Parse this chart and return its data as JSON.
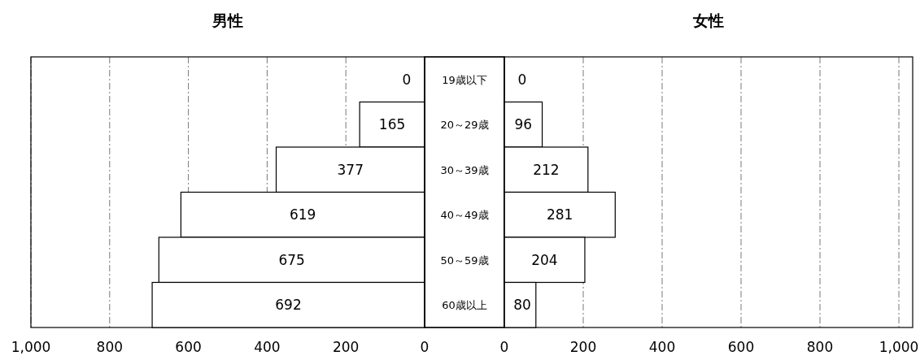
{
  "chart_data": [
    {
      "type": "bar",
      "orientation": "horizontal",
      "title": "男性",
      "categories": [
        null,
        null,
        null,
        null,
        null,
        null
      ],
      "values": [
        0,
        165,
        377,
        619,
        675,
        692
      ],
      "color": "#ffffff",
      "xlim": [
        1000,
        0
      ],
      "xticks": [
        {
          "value": 1000,
          "label": "1,000"
        },
        800,
        600,
        400,
        200,
        0
      ],
      "grid": "x",
      "data_labels": true
    },
    {
      "type": "bar",
      "orientation": "horizontal",
      "title": "女性",
      "categories": [
        "19歳以下",
        "20～29歳",
        "30～39歳",
        "40～49歳",
        "50～59歳",
        "60歳以上"
      ],
      "values": [
        0,
        96,
        212,
        281,
        204,
        80
      ],
      "color": "#ffffff",
      "xlim": [
        0,
        1035
      ],
      "xticks": [
        0,
        200,
        400,
        600,
        800,
        {
          "value": 1000,
          "label": "1,000"
        }
      ],
      "grid": "x",
      "data_labels": true
    }
  ]
}
